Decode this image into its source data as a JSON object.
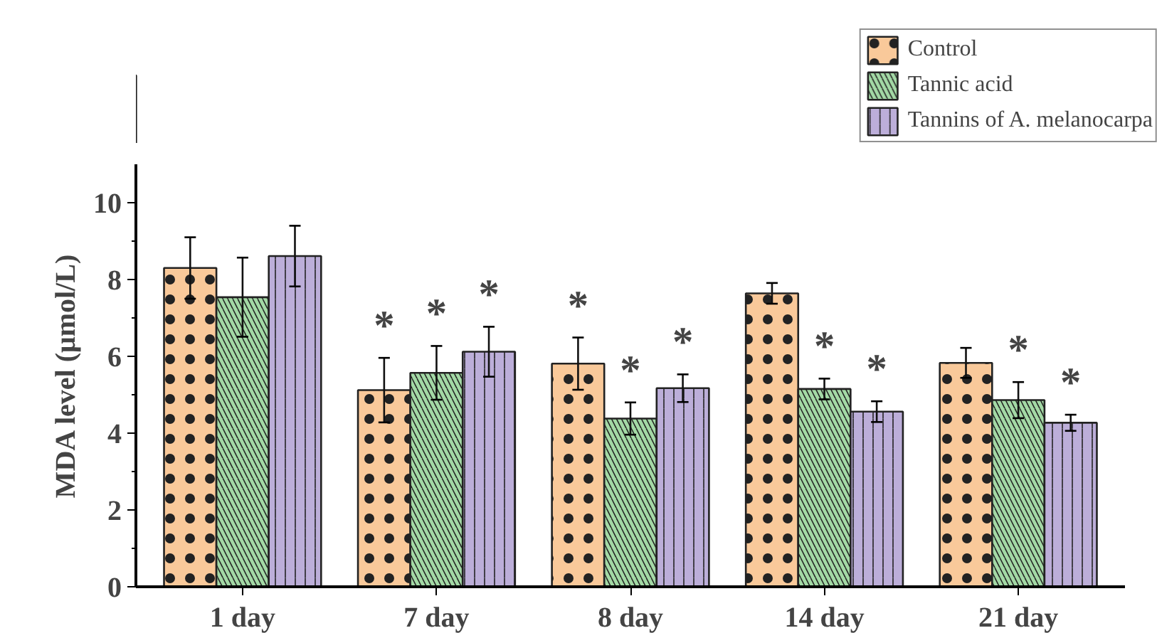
{
  "chart_data": {
    "type": "bar",
    "ylabel": "MDA level (μmol/L)",
    "categories": [
      "1 day",
      "7 day",
      "8 day",
      "14 day",
      "21 day"
    ],
    "series": [
      {
        "name": "Control",
        "color": "#f9c99a",
        "values": [
          8.3,
          5.12,
          5.81,
          7.64,
          5.83
        ],
        "errors": [
          0.8,
          0.84,
          0.68,
          0.27,
          0.39
        ],
        "value_labels": [
          null,
          "*",
          "*",
          null,
          null
        ]
      },
      {
        "name": "Tannic acid",
        "color": "#a3d9a5",
        "values": [
          7.54,
          5.57,
          4.38,
          5.15,
          4.86
        ],
        "errors": [
          1.03,
          0.7,
          0.42,
          0.27,
          0.47
        ],
        "value_labels": [
          null,
          "*",
          "*",
          "*",
          "*"
        ]
      },
      {
        "name": "Tannins of A. melanocarpa",
        "color": "#bcaed9",
        "values": [
          8.61,
          6.12,
          5.17,
          4.56,
          4.27
        ],
        "errors": [
          0.79,
          0.65,
          0.36,
          0.27,
          0.21
        ],
        "value_labels": [
          null,
          "*",
          "*",
          "*",
          "*"
        ]
      }
    ],
    "ylim": [
      0,
      11
    ],
    "yticks": [
      0,
      2,
      4,
      6,
      8,
      10
    ],
    "grid": false,
    "legend": "top right"
  }
}
